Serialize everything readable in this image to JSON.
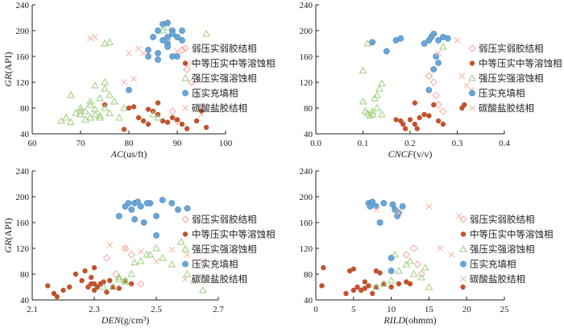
{
  "legend_labels": [
    "弱压实弱胶结相",
    "中等压实中等溶蚀相",
    "强压实强溶蚀相",
    "压实充填相",
    "碳酸盐胶结相"
  ],
  "series_styles": [
    {
      "marker": "diamond-open",
      "color": "#f4a8a0"
    },
    {
      "marker": "circle-filled",
      "color": "#c2532f"
    },
    {
      "marker": "triangle-open",
      "color": "#9ccf7c"
    },
    {
      "marker": "circle-filled",
      "color": "#6aa6d8"
    },
    {
      "marker": "x-mark",
      "color": "#f4b8a8"
    }
  ],
  "chart_data": [
    {
      "type": "scatter",
      "xlabel_italic": "AC",
      "xlabel_unit": "(us/ft)",
      "ylabel_italic": "GR",
      "ylabel_unit": "(API)",
      "xlim": [
        60,
        100
      ],
      "ylim": [
        40,
        240
      ],
      "xticks": [
        "60",
        "70",
        "80",
        "90",
        "100"
      ],
      "yticks": [
        "40",
        "80",
        "120",
        "160",
        "200",
        "240"
      ],
      "series": [
        {
          "name": "弱压实弱胶结相",
          "x": [
            88,
            91,
            92,
            93,
            94,
            95,
            90,
            89
          ],
          "y": [
            185,
            170,
            140,
            120,
            100,
            80,
            60,
            75
          ]
        },
        {
          "name": "中等压实中等溶蚀相",
          "x": [
            75,
            79,
            80,
            81,
            82,
            83,
            84,
            85,
            86,
            87,
            88,
            89,
            90,
            91,
            92,
            94,
            95,
            86,
            84,
            96
          ],
          "y": [
            85,
            47,
            80,
            82,
            65,
            60,
            55,
            75,
            70,
            60,
            58,
            65,
            62,
            55,
            48,
            60,
            75,
            88,
            78,
            50
          ]
        },
        {
          "name": "强压实强溶蚀相",
          "x": [
            66,
            67,
            68,
            69,
            70,
            70,
            71,
            71,
            72,
            72,
            73,
            73,
            74,
            74,
            75,
            75,
            76,
            76,
            77,
            68,
            70,
            72,
            74,
            73,
            75,
            78,
            79,
            75,
            76,
            87,
            88,
            96,
            85,
            86
          ],
          "y": [
            60,
            65,
            58,
            72,
            70,
            80,
            62,
            75,
            85,
            90,
            70,
            78,
            95,
            68,
            80,
            110,
            100,
            72,
            90,
            100,
            75,
            65,
            65,
            115,
            120,
            65,
            80,
            180,
            182,
            200,
            205,
            195,
            70,
            65
          ]
        },
        {
          "name": "压实充填相",
          "x": [
            80,
            84,
            84,
            85,
            86,
            86,
            87,
            87,
            88,
            88,
            88,
            89,
            89,
            90,
            90,
            91,
            89,
            90,
            91,
            86,
            88
          ],
          "y": [
            108,
            160,
            170,
            190,
            200,
            165,
            210,
            185,
            212,
            190,
            180,
            200,
            195,
            190,
            160,
            185,
            160,
            190,
            200,
            155,
            175
          ]
        },
        {
          "name": "碳酸盐胶结相",
          "x": [
            72,
            73,
            79,
            80,
            81,
            82,
            83,
            90,
            93,
            95
          ],
          "y": [
            188,
            190,
            120,
            165,
            125,
            172,
            165,
            168,
            150,
            70
          ]
        }
      ]
    },
    {
      "type": "scatter",
      "xlabel_italic": "CNCF",
      "xlabel_unit": "(v/v)",
      "ylabel_italic": "",
      "ylabel_unit": "",
      "xlim": [
        0,
        0.4
      ],
      "ylim": [
        40,
        240
      ],
      "xticks": [
        "0.0",
        "0.1",
        "0.2",
        "0.3",
        "0.4"
      ],
      "yticks": [
        "40",
        "80",
        "120",
        "160",
        "200",
        "240"
      ],
      "series": [
        {
          "name": "弱压实弱胶结相",
          "x": [
            0.24,
            0.25,
            0.255,
            0.26,
            0.27
          ],
          "y": [
            130,
            120,
            100,
            85,
            75
          ]
        },
        {
          "name": "中等压实中等溶蚀相",
          "x": [
            0.17,
            0.18,
            0.185,
            0.19,
            0.2,
            0.21,
            0.215,
            0.22,
            0.23,
            0.24,
            0.25,
            0.26,
            0.27,
            0.31,
            0.315,
            0.21
          ],
          "y": [
            62,
            60,
            55,
            48,
            62,
            55,
            48,
            65,
            70,
            68,
            85,
            60,
            55,
            80,
            85,
            88
          ]
        },
        {
          "name": "强压实强溶蚀相",
          "x": [
            0.1,
            0.105,
            0.11,
            0.115,
            0.12,
            0.125,
            0.13,
            0.135,
            0.14,
            0.11,
            0.12,
            0.13,
            0.1,
            0.14,
            0.27
          ],
          "y": [
            90,
            75,
            72,
            68,
            70,
            95,
            80,
            110,
            118,
            180,
            75,
            100,
            138,
            70,
            175
          ]
        },
        {
          "name": "压实充填相",
          "x": [
            0.12,
            0.15,
            0.17,
            0.18,
            0.23,
            0.24,
            0.245,
            0.25,
            0.255,
            0.26,
            0.27,
            0.28,
            0.25,
            0.26,
            0.24
          ],
          "y": [
            182,
            168,
            185,
            188,
            180,
            185,
            190,
            195,
            160,
            185,
            190,
            188,
            140,
            150,
            108
          ]
        },
        {
          "name": "碳酸盐胶结相",
          "x": [
            0.26,
            0.3,
            0.31,
            0.32,
            0.33
          ],
          "y": [
            165,
            185,
            130,
            115,
            108
          ]
        }
      ]
    },
    {
      "type": "scatter",
      "xlabel_italic": "DEN",
      "xlabel_unit": "(g/cm³)",
      "ylabel_italic": "GR",
      "ylabel_unit": "(API)",
      "xlim": [
        2.1,
        2.7
      ],
      "ylim": [
        40,
        240
      ],
      "xticks": [
        "2.1",
        "2.3",
        "2.5",
        "2.7"
      ],
      "yticks": [
        "40",
        "80",
        "120",
        "160",
        "200",
        "240"
      ],
      "series": [
        {
          "name": "弱压实弱胶结相",
          "x": [
            2.34,
            2.37,
            2.4,
            2.42,
            2.45
          ],
          "y": [
            105,
            80,
            120,
            110,
            65
          ]
        },
        {
          "name": "中等压实中等溶蚀相",
          "x": [
            2.15,
            2.17,
            2.18,
            2.2,
            2.22,
            2.24,
            2.26,
            2.27,
            2.28,
            2.29,
            2.3,
            2.3,
            2.31,
            2.32,
            2.33,
            2.34,
            2.35,
            2.36,
            2.38,
            2.3,
            2.4,
            2.42,
            2.29
          ],
          "y": [
            62,
            50,
            45,
            55,
            60,
            80,
            70,
            85,
            60,
            65,
            55,
            90,
            60,
            65,
            68,
            52,
            70,
            60,
            58,
            65,
            70,
            65,
            75
          ]
        },
        {
          "name": "强压实强溶蚀相",
          "x": [
            2.36,
            2.38,
            2.4,
            2.42,
            2.45,
            2.47,
            2.5,
            2.55,
            2.58,
            2.4,
            2.43,
            2.33,
            2.48,
            2.52,
            2.6,
            2.62,
            2.65,
            2.38
          ],
          "y": [
            60,
            72,
            70,
            80,
            100,
            110,
            120,
            95,
            130,
            68,
            98,
            60,
            110,
            105,
            80,
            70,
            55,
            75
          ]
        },
        {
          "name": "压实充填相",
          "x": [
            2.38,
            2.4,
            2.41,
            2.42,
            2.43,
            2.44,
            2.45,
            2.46,
            2.48,
            2.5,
            2.52,
            2.55,
            2.57,
            2.6,
            2.47,
            2.5,
            2.43
          ],
          "y": [
            170,
            185,
            190,
            180,
            190,
            192,
            185,
            160,
            190,
            140,
            195,
            190,
            180,
            182,
            190,
            170,
            165
          ]
        },
        {
          "name": "碳酸盐胶结相",
          "x": [
            2.4,
            2.45,
            2.5,
            2.55,
            2.6,
            2.65,
            2.35
          ],
          "y": [
            120,
            115,
            100,
            118,
            110,
            100,
            125
          ]
        }
      ]
    },
    {
      "type": "scatter",
      "xlabel_italic": "RILD",
      "xlabel_unit": "(ohmm)",
      "ylabel_italic": "",
      "ylabel_unit": "",
      "xlim": [
        0,
        25
      ],
      "ylim": [
        40,
        240
      ],
      "xticks": [
        "0",
        "5",
        "10",
        "15",
        "20",
        "25"
      ],
      "yticks": [
        "40",
        "80",
        "120",
        "160",
        "200",
        "240"
      ],
      "series": [
        {
          "name": "弱压实弱胶结相",
          "x": [
            12,
            13,
            13.5,
            14
          ],
          "y": [
            110,
            120,
            95,
            80
          ]
        },
        {
          "name": "中等压实中等溶蚀相",
          "x": [
            0.8,
            1,
            4,
            4.5,
            5,
            5.5,
            6,
            6.5,
            7,
            7.5,
            8,
            8.5,
            9,
            10,
            11,
            12,
            12.5,
            19.5,
            5,
            8,
            6.5
          ],
          "y": [
            62,
            90,
            50,
            85,
            55,
            60,
            55,
            58,
            62,
            50,
            85,
            82,
            65,
            60,
            65,
            68,
            65,
            60,
            88,
            60,
            68
          ]
        },
        {
          "name": "强压实强溶蚀相",
          "x": [
            8,
            9,
            10,
            11,
            12,
            13,
            14,
            15,
            10.5,
            12.5,
            14.5
          ],
          "y": [
            60,
            65,
            70,
            85,
            95,
            80,
            75,
            60,
            110,
            100,
            90
          ]
        },
        {
          "name": "压实充填相",
          "x": [
            7,
            7.2,
            7.5,
            8,
            8.5,
            9,
            10,
            10.2,
            10.5,
            10.8,
            11,
            10,
            11.5
          ],
          "y": [
            190,
            185,
            192,
            185,
            160,
            190,
            105,
            188,
            180,
            170,
            175,
            85,
            185
          ]
        },
        {
          "name": "碳酸盐胶结相",
          "x": [
            8,
            15,
            16.5,
            18,
            19,
            11
          ],
          "y": [
            180,
            185,
            120,
            110,
            170,
            175
          ]
        }
      ]
    }
  ]
}
